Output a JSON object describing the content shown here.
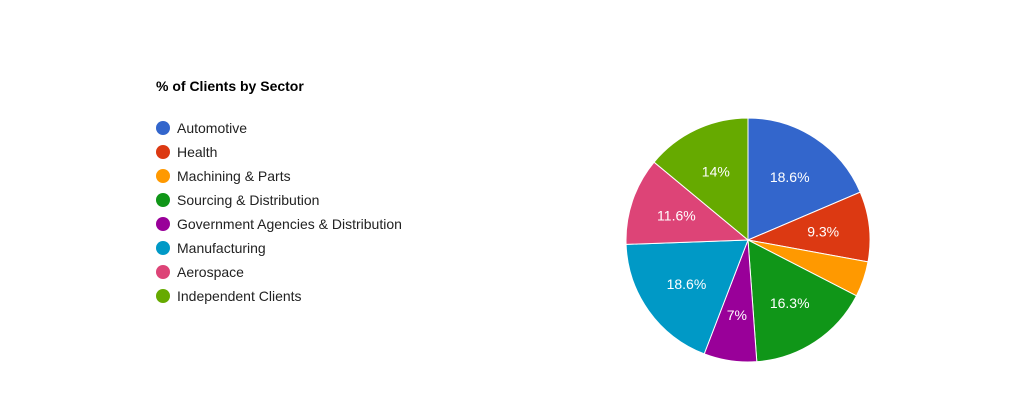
{
  "chart_data": {
    "type": "pie",
    "title": "% of Clients by Sector",
    "legend_position": "left",
    "categories": [
      "Automotive",
      "Health",
      "Machining & Parts",
      "Sourcing & Distribution",
      "Government Agencies & Distribution",
      "Manufacturing",
      "Aerospace",
      "Independent Clients"
    ],
    "values": [
      18.6,
      9.3,
      4.7,
      16.3,
      7,
      18.6,
      11.6,
      14
    ],
    "labels": [
      "18.6%",
      "9.3%",
      "",
      "16.3%",
      "7%",
      "18.6%",
      "11.6%",
      "14%"
    ],
    "colors": [
      "#3366cc",
      "#dc3912",
      "#ff9900",
      "#109618",
      "#990099",
      "#0099c6",
      "#dd4477",
      "#66aa00"
    ]
  }
}
